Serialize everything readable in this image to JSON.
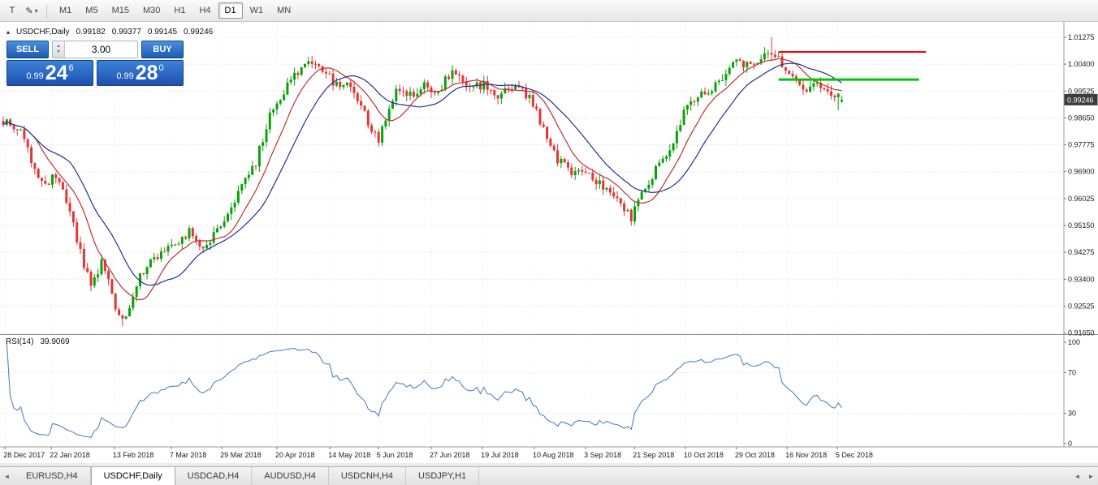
{
  "colors": {
    "bull": "#0aa10a",
    "bear": "#e23535",
    "ma_fast": "#c03030",
    "ma_slow": "#20308f",
    "rsi": "#4f86c0",
    "grid_h": "#dcdcdc",
    "grid_v": "#ededed",
    "axis_text": "#1a1a1a",
    "badge_bg": "#3c3c3c",
    "badge_text": "#ffffff",
    "resistance": "#ff0000",
    "support": "#00c800"
  },
  "toolbar": {
    "cursor_tool_label": "T",
    "draw_icon": "✎",
    "dropdown_icon": "▾",
    "timeframes": [
      {
        "label": "M1",
        "active": false
      },
      {
        "label": "M5",
        "active": false
      },
      {
        "label": "M15",
        "active": false
      },
      {
        "label": "M30",
        "active": false
      },
      {
        "label": "H1",
        "active": false
      },
      {
        "label": "H4",
        "active": false
      },
      {
        "label": "D1",
        "active": true
      },
      {
        "label": "W1",
        "active": false
      },
      {
        "label": "MN",
        "active": false
      }
    ]
  },
  "chart": {
    "panel_toggle_icon": "▴",
    "title": "USDCHF,Daily",
    "ohlc": {
      "open": "0.99182",
      "high": "0.99377",
      "low": "0.99145",
      "close": "0.99246"
    },
    "trade_panel": {
      "sell_label": "SELL",
      "buy_label": "BUY",
      "volume": "3.00",
      "spin_up_icon": "▴",
      "spin_down_icon": "▾",
      "sell_price": {
        "small": "0.99",
        "big": "24",
        "sup": "6"
      },
      "buy_price": {
        "small": "0.99",
        "big": "28",
        "sup": "0"
      }
    },
    "price_axis": {
      "labels": [
        "1.01275",
        "1.00400",
        "0.99525",
        "0.98650",
        "0.97775",
        "0.96900",
        "0.96025",
        "0.95150",
        "0.94275",
        "0.93400",
        "0.92525",
        "0.91650"
      ],
      "current": "0.99246"
    },
    "time_axis": {
      "ticks": [
        {
          "label": "28 Dec 2017",
          "i": 0.5
        },
        {
          "label": "22 Jan 2018",
          "i": 13.7
        },
        {
          "label": "13 Feb 2018",
          "i": 31.7
        },
        {
          "label": "7 Mar 2018",
          "i": 47.9
        },
        {
          "label": "29 Mar 2018",
          "i": 62.3
        },
        {
          "label": "20 Apr 2018",
          "i": 78.0
        },
        {
          "label": "14 May 2018",
          "i": 93.1
        },
        {
          "label": "5 Jun 2018",
          "i": 106.9
        },
        {
          "label": "27 Jun 2018",
          "i": 122.0
        },
        {
          "label": "19 Jul 2018",
          "i": 136.6
        },
        {
          "label": "10 Aug 2018",
          "i": 151.4
        },
        {
          "label": "3 Sep 2018",
          "i": 166.0
        },
        {
          "label": "21 Sep 2018",
          "i": 179.9
        },
        {
          "label": "10 Oct 2018",
          "i": 194.4
        },
        {
          "label": "29 Oct 2018",
          "i": 209.0
        },
        {
          "label": "16 Nov 2018",
          "i": 223.4
        },
        {
          "label": "5 Dec 2018",
          "i": 237.7
        }
      ]
    },
    "lines": [
      {
        "name": "resistance",
        "price": 1.008,
        "from_i": 221,
        "to_i": 263,
        "width": 2,
        "color_key": "resistance"
      },
      {
        "name": "support",
        "price": 0.999,
        "from_i": 221,
        "to_i": 261,
        "width": 3,
        "color_key": "support"
      }
    ]
  },
  "rsi": {
    "label": "RSI(14)",
    "value": "39.9069",
    "period": 14,
    "levels": [
      {
        "label": "100",
        "v": 100
      },
      {
        "label": "70",
        "v": 70
      },
      {
        "label": "30",
        "v": 30
      },
      {
        "label": "0",
        "v": 0
      }
    ],
    "level_lines": [
      70,
      30
    ]
  },
  "chart_data": {
    "type": "candlestick",
    "symbol": "USDCHF",
    "timeframe": "Daily",
    "candles_count": 240,
    "visible_price_range": [
      0.9164,
      1.0178
    ],
    "last_candle": {
      "open": 0.99182,
      "high": 0.99377,
      "low": 0.99145,
      "close": 0.99246
    },
    "price_anchors": [
      [
        0,
        0.9855
      ],
      [
        5,
        0.982
      ],
      [
        9,
        0.969
      ],
      [
        13,
        0.9655
      ],
      [
        15,
        0.968
      ],
      [
        19,
        0.9555
      ],
      [
        23,
        0.939
      ],
      [
        25,
        0.931
      ],
      [
        28,
        0.939
      ],
      [
        30,
        0.933
      ],
      [
        33,
        0.9215
      ],
      [
        35,
        0.921
      ],
      [
        38,
        0.933
      ],
      [
        42,
        0.9395
      ],
      [
        47,
        0.944
      ],
      [
        53,
        0.9495
      ],
      [
        57,
        0.9445
      ],
      [
        62,
        0.951
      ],
      [
        67,
        0.9615
      ],
      [
        72,
        0.972
      ],
      [
        76,
        0.988
      ],
      [
        80,
        0.9955
      ],
      [
        83,
        1.001
      ],
      [
        87,
        1.0045
      ],
      [
        90,
        1.0025
      ],
      [
        94,
        0.9985
      ],
      [
        98,
        0.9975
      ],
      [
        102,
        0.9905
      ],
      [
        105,
        0.9825
      ],
      [
        107,
        0.979
      ],
      [
        110,
        0.9905
      ],
      [
        112,
        0.996
      ],
      [
        116,
        0.9935
      ],
      [
        120,
        0.9975
      ],
      [
        124,
        0.9945
      ],
      [
        128,
        1.0025
      ],
      [
        132,
        0.996
      ],
      [
        137,
        0.9975
      ],
      [
        141,
        0.994
      ],
      [
        146,
        0.9965
      ],
      [
        150,
        0.9935
      ],
      [
        154,
        0.983
      ],
      [
        158,
        0.973
      ],
      [
        163,
        0.968
      ],
      [
        166,
        0.97
      ],
      [
        171,
        0.964
      ],
      [
        175,
        0.959
      ],
      [
        179,
        0.954
      ],
      [
        182,
        0.963
      ],
      [
        186,
        0.9695
      ],
      [
        190,
        0.9765
      ],
      [
        194,
        0.988
      ],
      [
        198,
        0.9935
      ],
      [
        202,
        0.996
      ],
      [
        205,
        1.0
      ],
      [
        209,
        1.005
      ],
      [
        213,
        1.003
      ],
      [
        217,
        1.007
      ],
      [
        219,
        1.0085
      ],
      [
        222,
        1.004
      ],
      [
        226,
        0.9985
      ],
      [
        229,
        0.9965
      ],
      [
        233,
        0.9975
      ],
      [
        236,
        0.995
      ],
      [
        239,
        0.9925
      ]
    ],
    "key_points": [
      {
        "index": 34,
        "low": 0.9187
      },
      {
        "index": 179,
        "low": 0.9531
      },
      {
        "index": 219,
        "high": 1.0128
      },
      {
        "index": 238,
        "low": 0.989
      }
    ],
    "moving_averages": [
      {
        "period": 10,
        "color_key": "ma_fast"
      },
      {
        "period": 20,
        "color_key": "ma_slow"
      }
    ]
  },
  "tabs": {
    "scroll_left_icon": "◄",
    "scroll_right_icon": "►",
    "items": [
      {
        "label": "EURUSD,H4",
        "active": false
      },
      {
        "label": "USDCHF,Daily",
        "active": true
      },
      {
        "label": "USDCAD,H4",
        "active": false
      },
      {
        "label": "AUDUSD,H4",
        "active": false
      },
      {
        "label": "USDCNH,H4",
        "active": false
      },
      {
        "label": "USDJPY,H1",
        "active": false
      }
    ]
  }
}
